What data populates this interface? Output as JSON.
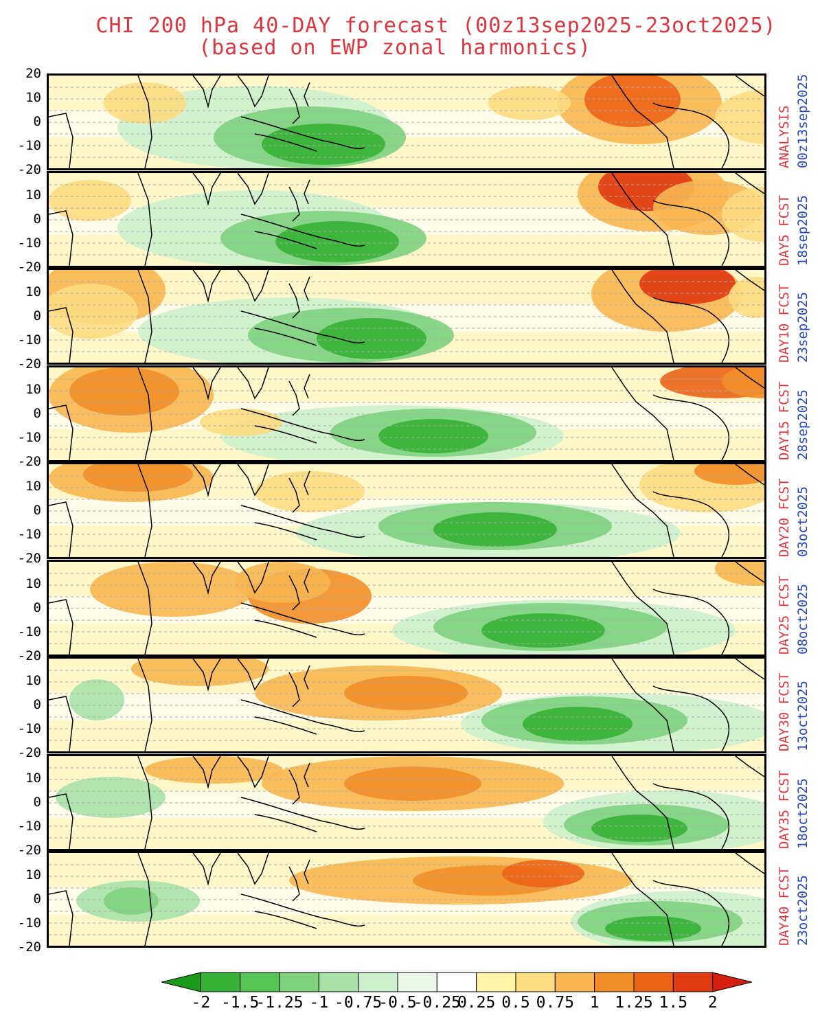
{
  "title_line1": "CHI 200 hPa 40-DAY forecast (00z13sep2025-23oct2025)",
  "title_line2": "(based on EWP zonal harmonics)",
  "map": {
    "region": "tropics (-20 to 20 latitude), Africa to South America",
    "lat_ticks": [
      "20",
      "10",
      "0",
      "-10",
      "-20"
    ],
    "panels": [
      {
        "kind": "ANALYSIS",
        "date": "00z13sep2025"
      },
      {
        "kind": "DAY5 FCST",
        "date": "18sep2025"
      },
      {
        "kind": "DAY10 FCST",
        "date": "23sep2025"
      },
      {
        "kind": "DAY15 FCST",
        "date": "28sep2025"
      },
      {
        "kind": "DAY20 FCST",
        "date": "03oct2025"
      },
      {
        "kind": "DAY25 FCST",
        "date": "08oct2025"
      },
      {
        "kind": "DAY30 FCST",
        "date": "13oct2025"
      },
      {
        "kind": "DAY35 FCST",
        "date": "18oct2025"
      },
      {
        "kind": "DAY40 FCST",
        "date": "23oct2025"
      }
    ]
  },
  "colorbar": {
    "labels": [
      "-2",
      "-1.5",
      "-1.25",
      "-1",
      "-0.75",
      "-0.5",
      "-0.25",
      "0.25",
      "0.5",
      "0.75",
      "1",
      "1.25",
      "1.5",
      "2"
    ],
    "colors": [
      "#1a9a1a",
      "#36b336",
      "#55c455",
      "#7ed27e",
      "#a8e2a8",
      "#cdefcd",
      "#eaf8ea",
      "#ffffff",
      "#fff3a8",
      "#fddc82",
      "#f9b650",
      "#f28e28",
      "#ec6418",
      "#e03a12",
      "#d4200e"
    ]
  }
}
